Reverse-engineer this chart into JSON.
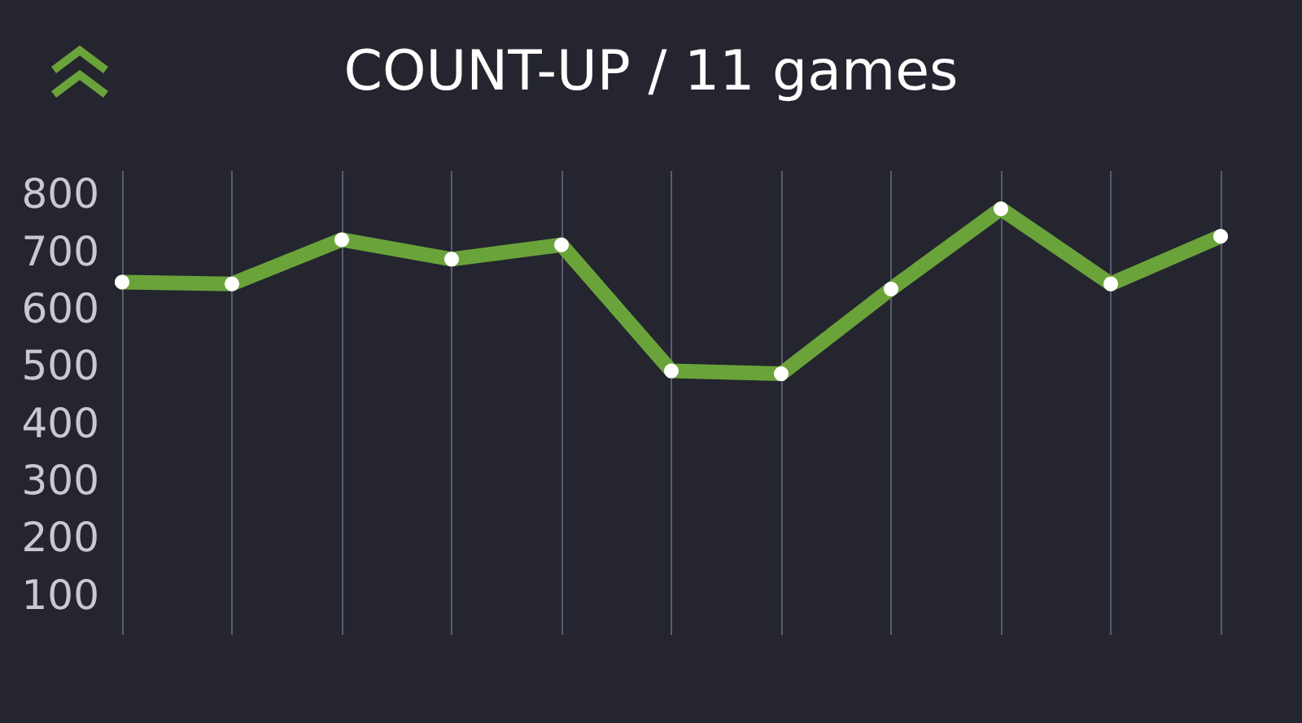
{
  "chart_data": {
    "type": "line",
    "title": "COUNT-UP / 11 games",
    "categories": [
      null,
      null,
      null,
      null,
      null,
      null,
      null,
      null,
      null,
      null,
      null
    ],
    "series": [
      {
        "color": "#6aa33a",
        "values": [
          646,
          643,
          720,
          686,
          711,
          491,
          486,
          634,
          774,
          643,
          726
        ]
      }
    ],
    "ylim": [
      30,
      840
    ],
    "yticks": [
      100,
      200,
      300,
      400,
      500,
      600,
      700,
      800
    ],
    "grid": "x",
    "marker": "circle",
    "line_style": "solid",
    "tick_labels": "y"
  }
}
